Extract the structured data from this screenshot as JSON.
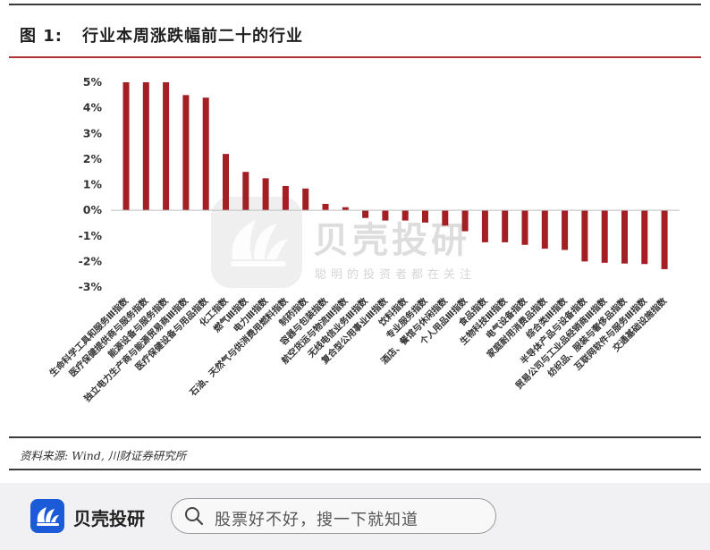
{
  "figure": {
    "label": "图 1:",
    "title": "行业本周涨跌幅前二十的行业",
    "source": "资料来源: Wind, 川财证券研究所"
  },
  "watermark": {
    "name": "贝壳投研",
    "slogan": "聪明的投资者都在关注"
  },
  "footer": {
    "brand": "贝壳投研",
    "search_placeholder": "股票好不好，搜一下就知道"
  },
  "colors": {
    "bar": "#a31f24",
    "rule_red": "#b03232",
    "brand_blue": "#1c5bd8"
  },
  "chart_data": {
    "type": "bar",
    "title": "行业本周涨跌幅前二十的行业",
    "xlabel": "",
    "ylabel": "",
    "ylim": [
      -3,
      5
    ],
    "yticks": [
      "-3%",
      "-2%",
      "-1%",
      "0%",
      "1%",
      "2%",
      "3%",
      "4%",
      "5%"
    ],
    "grid": false,
    "legend": "none",
    "categories": [
      "生命科学工具和服务Ⅲ指数",
      "医疗保健提供商与服务指数",
      "能源设备与服务指数",
      "独立电力生产商与能源贸易商Ⅲ指数",
      "医疗保健设备与用品指数",
      "化工指数",
      "燃气Ⅲ指数",
      "电力Ⅲ指数",
      "石油、天然气与供消费用燃料指数",
      "制药指数",
      "容器与包装指数",
      "航空货运与物流Ⅲ指数",
      "无线电信业务Ⅲ指数",
      "复合型公用事业Ⅲ指数",
      "饮料指数",
      "专业服务指数",
      "酒店、餐馆与休闲指数",
      "个人用品Ⅲ指数",
      "食品指数",
      "生物科技Ⅲ指数",
      "电气设备指数",
      "家庭耐用消费品指数",
      "综合类Ⅲ指数",
      "半导体产品与设备指数",
      "贸易公司与工业品经销商Ⅲ指数",
      "纺织品、服装与奢侈品指数",
      "互联网软件与服务Ⅲ指数",
      "交通基础设施指数"
    ],
    "values": [
      5.0,
      5.0,
      5.0,
      4.5,
      4.4,
      2.2,
      1.5,
      1.25,
      0.95,
      0.85,
      0.25,
      0.12,
      -0.3,
      -0.4,
      -0.4,
      -0.48,
      -0.6,
      -0.82,
      -1.25,
      -1.25,
      -1.35,
      -1.5,
      -1.55,
      -2.0,
      -2.05,
      -2.08,
      -2.1,
      -2.3
    ]
  }
}
